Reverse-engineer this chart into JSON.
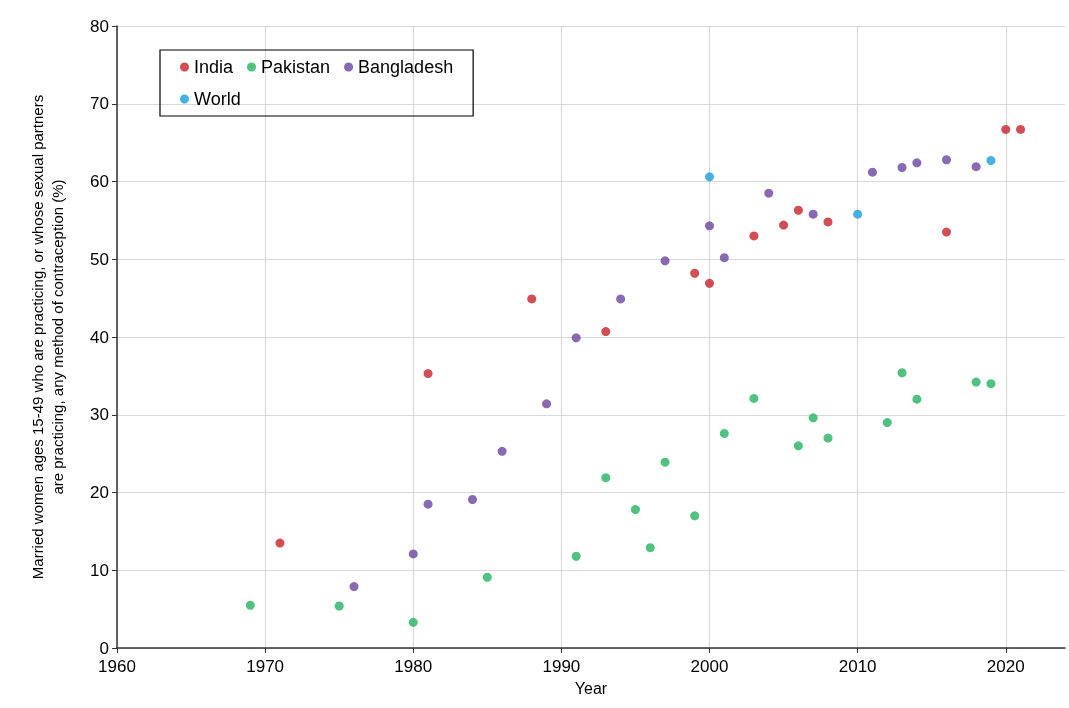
{
  "chart_data": {
    "type": "scatter",
    "xlabel": "Year",
    "ylabel": "Married women ages 15-49 who are practicing, or whose sexual partners\nare practicing, any method of contraception (%)",
    "xlim": [
      1960,
      2024
    ],
    "xticks": [
      1960,
      1970,
      1980,
      1990,
      2000,
      2010,
      2020
    ],
    "ylim": [
      0,
      80
    ],
    "yticks": [
      0,
      10,
      20,
      30,
      40,
      50,
      60,
      70,
      80
    ],
    "grid": true,
    "legend": "top left",
    "marker": "circle",
    "series": [
      {
        "name": "India",
        "color": "#c8202a",
        "x": [
          1971,
          1981,
          1988,
          1993,
          1999,
          2000,
          2003,
          2005,
          2006,
          2008,
          2016,
          2020,
          2021
        ],
        "values": [
          13.5,
          35.3,
          44.9,
          40.7,
          48.2,
          46.9,
          53.0,
          54.4,
          56.3,
          54.8,
          53.5,
          66.7,
          66.7
        ]
      },
      {
        "name": "Pakistan",
        "color": "#23b35f",
        "x": [
          1969,
          1975,
          1980,
          1985,
          1991,
          1993,
          1995,
          1996,
          1997,
          1999,
          2001,
          2003,
          2006,
          2007,
          2008,
          2012,
          2013,
          2014,
          2018,
          2019
        ],
        "values": [
          5.5,
          5.4,
          3.3,
          9.1,
          11.8,
          21.9,
          17.8,
          12.9,
          23.9,
          17.0,
          27.6,
          32.1,
          26.0,
          29.6,
          27.0,
          29.0,
          35.4,
          32.0,
          34.2,
          34.0
        ]
      },
      {
        "name": "Bangladesh",
        "color": "#6a44a0",
        "x": [
          1976,
          1980,
          1981,
          1984,
          1986,
          1989,
          1991,
          1994,
          1997,
          2000,
          2001,
          2004,
          2007,
          2011,
          2013,
          2014,
          2016,
          2018
        ],
        "values": [
          7.9,
          12.1,
          18.5,
          19.1,
          25.3,
          31.4,
          39.9,
          44.9,
          49.8,
          54.3,
          50.2,
          58.5,
          55.8,
          61.2,
          61.8,
          62.4,
          62.8,
          61.9
        ]
      },
      {
        "name": "World",
        "color": "#1a9ed8",
        "x": [
          2000,
          2010,
          2019
        ],
        "values": [
          60.6,
          55.8,
          62.7
        ]
      }
    ]
  }
}
